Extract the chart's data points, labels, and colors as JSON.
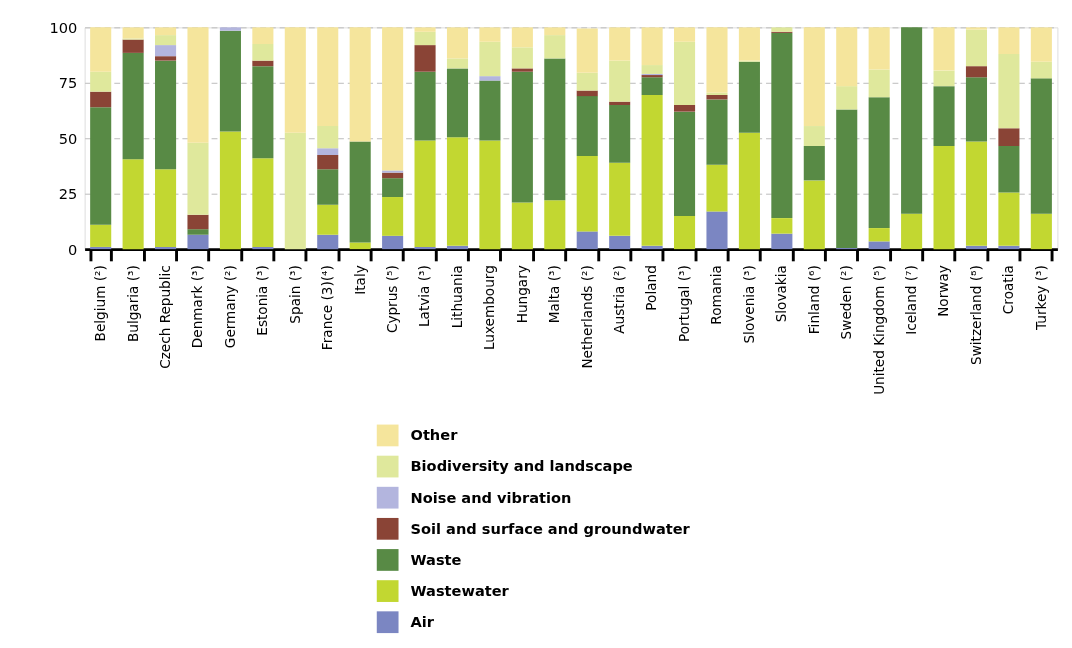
{
  "chart_data": {
    "type": "bar",
    "stacked": true,
    "categories": [
      "Belgium (²)",
      "Bulgaria (³)",
      "Czech Republic",
      "Denmark (³)",
      "Germany (²)",
      "Estonia (³)",
      "Spain (³)",
      "France (3)(⁴)",
      "Italy",
      "Cyprus (⁵)",
      "Latvia (³)",
      "Lithuania",
      "Luxembourg",
      "Hungary",
      "Malta (³)",
      "Netherlands (²)",
      "Austria (²)",
      "Poland",
      "Portugal (³)",
      "Romania",
      "Slovenia (³)",
      "Slovakia",
      "Finland (⁶)",
      "Sweden (²)",
      "United Kingdom (⁵)",
      "Iceland (⁷)",
      "Norway",
      "Switzerland (⁸)",
      "Croatia",
      "Turkey (³)"
    ],
    "series": [
      {
        "name": "Air",
        "color": "#7b86c2",
        "values": [
          1,
          null,
          1,
          6.5,
          null,
          1,
          null,
          6.5,
          null,
          6,
          1,
          1.5,
          null,
          null,
          null,
          8,
          6,
          1.5,
          null,
          17,
          null,
          7,
          null,
          0.5,
          3.5,
          null,
          null,
          1.5,
          1.5,
          null
        ]
      },
      {
        "name": "Wastewater",
        "color": "#c2d731",
        "values": [
          10,
          40.5,
          35,
          null,
          53,
          40,
          null,
          13.5,
          3,
          17.5,
          48,
          49,
          49,
          21,
          22,
          34,
          33,
          68,
          15,
          21,
          52.5,
          7,
          31,
          null,
          6,
          16,
          46.5,
          47,
          24,
          16
        ]
      },
      {
        "name": "Waste",
        "color": "#588a45",
        "values": [
          53,
          48,
          49,
          2.5,
          45.5,
          41.5,
          null,
          16,
          45.5,
          8.5,
          31,
          31,
          27,
          59,
          64,
          27,
          26,
          8,
          47,
          29.5,
          32,
          83.5,
          15.5,
          62.5,
          59,
          84,
          27,
          29,
          21,
          61
        ]
      },
      {
        "name": "Soil and surface and groundwater",
        "color": "#8a4436",
        "values": [
          7,
          6,
          2,
          6.5,
          null,
          2.5,
          null,
          6.5,
          null,
          2.5,
          12,
          null,
          null,
          1.5,
          null,
          2.5,
          1.5,
          1,
          3,
          2,
          null,
          0.5,
          null,
          null,
          null,
          null,
          null,
          5,
          8,
          null
        ]
      },
      {
        "name": "Noise and vibration",
        "color": "#b3b5de",
        "values": [
          null,
          null,
          5,
          null,
          1.5,
          null,
          null,
          3,
          null,
          1,
          null,
          null,
          2,
          null,
          null,
          null,
          null,
          0.5,
          null,
          null,
          null,
          null,
          null,
          null,
          null,
          null,
          null,
          null,
          null,
          null
        ]
      },
      {
        "name": "Biodiversity and landscape",
        "color": "#dfe89c",
        "values": [
          9,
          0.5,
          4.5,
          32.5,
          null,
          7.5,
          52.5,
          10,
          null,
          null,
          6,
          4.5,
          15.5,
          9.5,
          10.5,
          8,
          18.5,
          4,
          28.5,
          1,
          0.5,
          2,
          9,
          10.5,
          12.5,
          null,
          7,
          16.5,
          33.5,
          7.5
        ]
      },
      {
        "name": "Other",
        "color": "#f5e59c",
        "values": [
          20,
          5,
          3.5,
          52,
          null,
          7.5,
          47.5,
          44.5,
          51.5,
          64.5,
          2,
          14,
          6.5,
          9,
          3.5,
          20,
          15,
          17,
          6.5,
          29.5,
          15,
          null,
          44.5,
          26.5,
          19,
          null,
          19.5,
          1,
          12,
          15.5
        ]
      }
    ],
    "ylim": [
      0,
      100
    ],
    "yticks": [
      0,
      25,
      50,
      75,
      100
    ],
    "grid": "y",
    "legend": "bottom"
  }
}
